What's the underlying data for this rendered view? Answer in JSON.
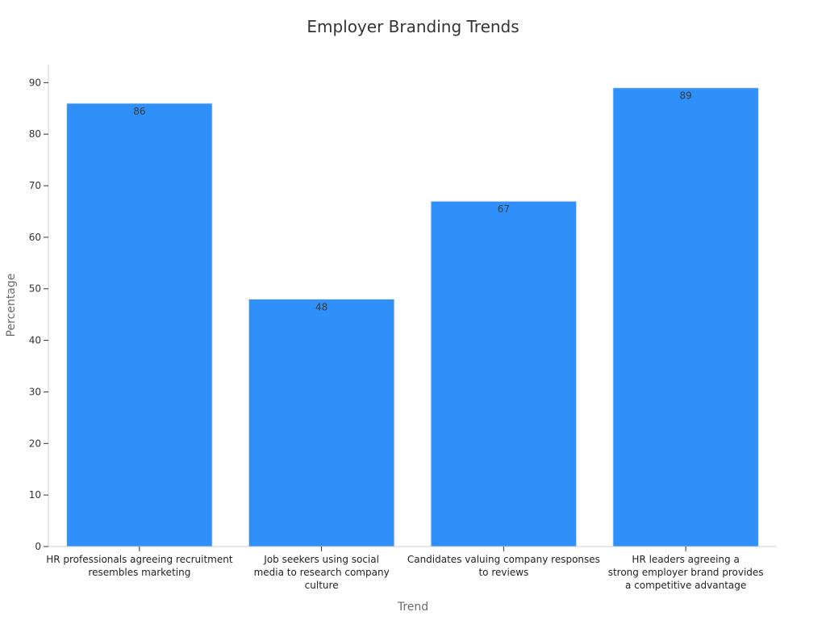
{
  "chart_data": {
    "type": "bar",
    "title": "Employer Branding Trends",
    "xlabel": "Trend",
    "ylabel": "Percentage",
    "categories": [
      [
        "HR professionals agreeing recruitment",
        "resembles marketing"
      ],
      [
        "Job seekers using social",
        "media to research company",
        "culture"
      ],
      [
        "Candidates valuing company responses",
        "to reviews"
      ],
      [
        "HR leaders agreeing a",
        "strong employer brand provides",
        "a competitive advantage"
      ]
    ],
    "values": [
      86,
      48,
      67,
      89
    ],
    "ylim": [
      0,
      93.5
    ],
    "yticks": [
      0,
      10,
      20,
      30,
      40,
      50,
      60,
      70,
      80,
      90
    ],
    "grid": false,
    "bar_color": "#2e90f8",
    "bar_edge_color": "#e6e6e6"
  }
}
